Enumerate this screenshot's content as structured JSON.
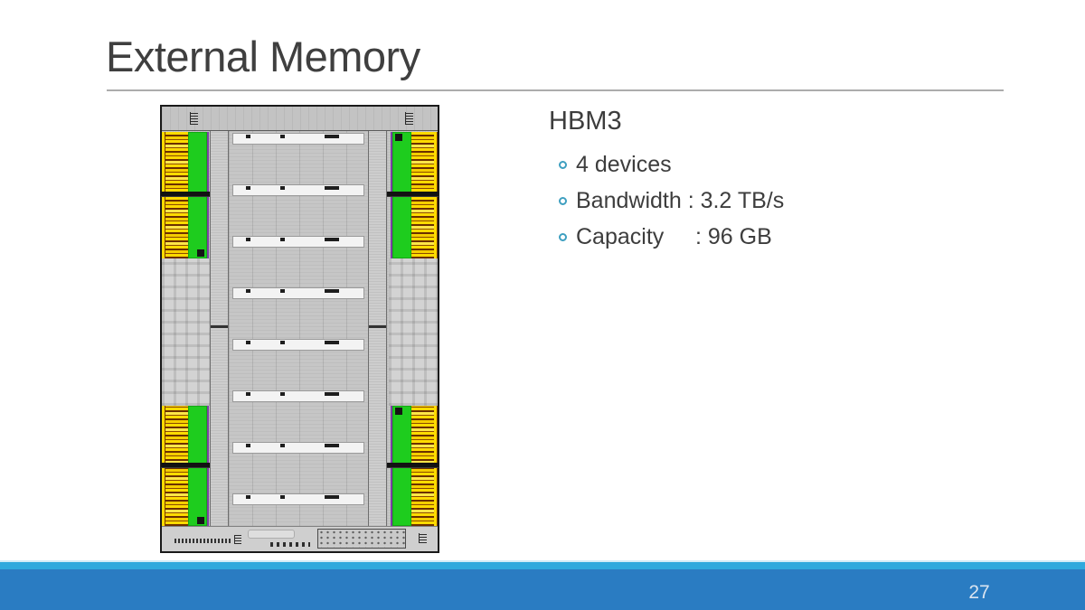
{
  "slide": {
    "title": "External Memory",
    "page_number": "27",
    "content": {
      "heading": "HBM3",
      "bullets": [
        "4 devices",
        "Bandwidth : 3.2 TB/s",
        "Capacity     : 96 GB"
      ]
    },
    "figure": {
      "type": "chip-die-floorplan-photo",
      "hbm_phy_regions": 4,
      "white_bar_rows": 8,
      "colors": {
        "io_green": "#1ECC1E",
        "io_yellow": "#FFDB00",
        "die_gray": "#C7C7C7",
        "edge_purple": "#7B3FA3"
      }
    },
    "theme": {
      "title_color": "#3F3F3F",
      "text_color": "#3D3D3D",
      "bullet_color": "#3E9FC0",
      "accent_strip": "#2FA9DD",
      "footer_bar": "#2A7CC2"
    }
  }
}
